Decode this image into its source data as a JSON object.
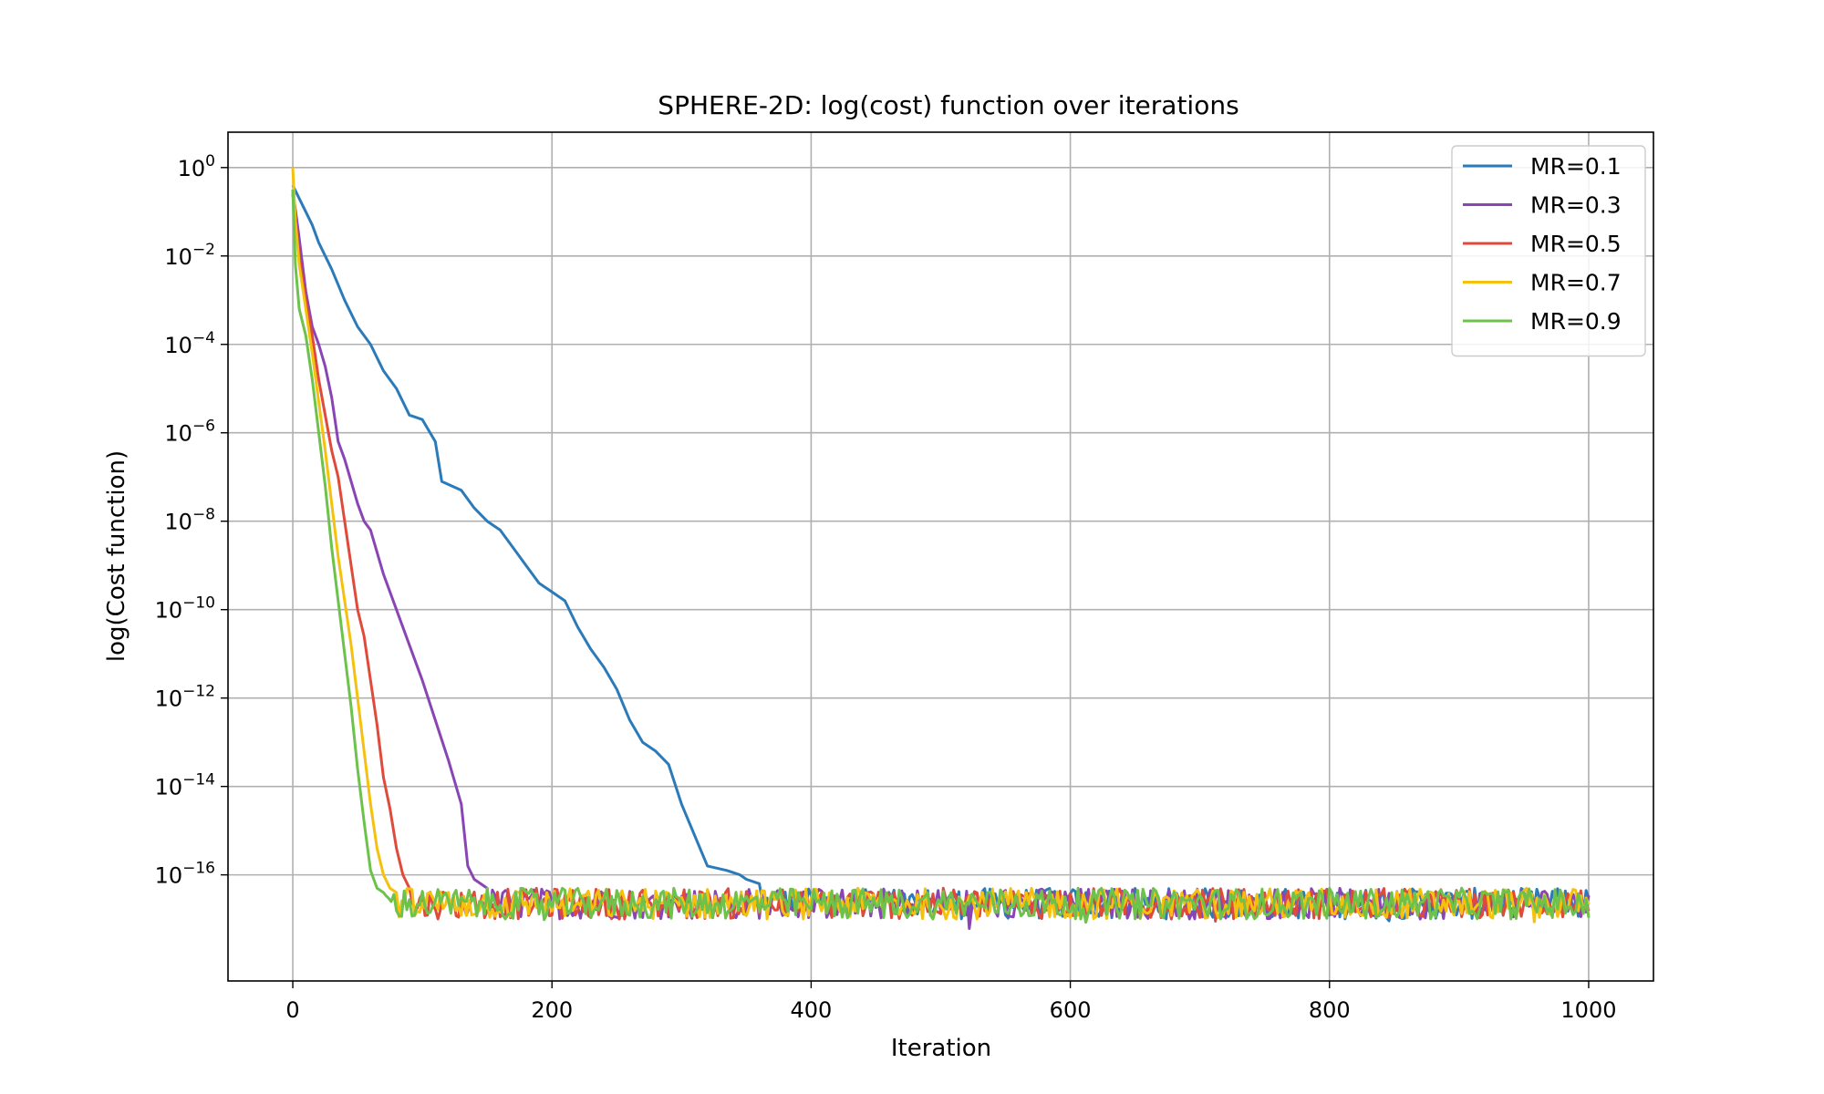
{
  "chart_data": {
    "type": "line",
    "title": "SPHERE-2D: log(cost) function over iterations",
    "xlabel": "Iteration",
    "ylabel": "log(Cost function)",
    "xlim": [
      -50,
      1050
    ],
    "ylim_log10": [
      -18.4,
      0.8
    ],
    "yscale": "log",
    "grid": true,
    "legend_position": "top-right",
    "x_ticks": [
      "0",
      "200",
      "400",
      "600",
      "800",
      "1000"
    ],
    "x_tick_values": [
      0,
      200,
      400,
      600,
      800,
      1000
    ],
    "y_ticks": [
      {
        "base": "10",
        "exp": "0",
        "log10": 0
      },
      {
        "base": "10",
        "exp": "−2",
        "log10": -2
      },
      {
        "base": "10",
        "exp": "−4",
        "log10": -4
      },
      {
        "base": "10",
        "exp": "−6",
        "log10": -6
      },
      {
        "base": "10",
        "exp": "−8",
        "log10": -8
      },
      {
        "base": "10",
        "exp": "−10",
        "log10": -10
      },
      {
        "base": "10",
        "exp": "−12",
        "log10": -12
      },
      {
        "base": "10",
        "exp": "−14",
        "log10": -14
      },
      {
        "base": "10",
        "exp": "−16",
        "log10": -16
      }
    ],
    "noise_floor_log10": {
      "min": -17.0,
      "max": -16.3
    },
    "series": [
      {
        "name": "MR=0.1",
        "color": "#2b7bba",
        "x": [
          0,
          5,
          10,
          15,
          20,
          30,
          40,
          50,
          60,
          70,
          80,
          90,
          100,
          110,
          115,
          130,
          140,
          150,
          160,
          170,
          180,
          190,
          200,
          210,
          220,
          230,
          240,
          250,
          260,
          270,
          280,
          290,
          300,
          310,
          320,
          335,
          345,
          350,
          360
        ],
        "log10_y": [
          -0.4,
          -0.7,
          -1.0,
          -1.3,
          -1.7,
          -2.3,
          -3.0,
          -3.6,
          -4.0,
          -4.6,
          -5.0,
          -5.6,
          -5.7,
          -6.2,
          -7.1,
          -7.3,
          -7.7,
          -8.0,
          -8.2,
          -8.6,
          -9.0,
          -9.4,
          -9.6,
          -9.8,
          -10.4,
          -10.9,
          -11.3,
          -11.8,
          -12.5,
          -13.0,
          -13.2,
          -13.5,
          -14.4,
          -15.1,
          -15.8,
          -15.9,
          -16.0,
          -16.1,
          -16.2
        ]
      },
      {
        "name": "MR=0.3",
        "color": "#8a45b5",
        "x": [
          0,
          5,
          10,
          15,
          20,
          25,
          30,
          35,
          40,
          50,
          55,
          60,
          70,
          80,
          90,
          100,
          110,
          120,
          130,
          135,
          140,
          150
        ],
        "log10_y": [
          -0.5,
          -1.6,
          -2.8,
          -3.6,
          -4.0,
          -4.5,
          -5.2,
          -6.2,
          -6.6,
          -7.6,
          -8.0,
          -8.2,
          -9.2,
          -10.0,
          -10.8,
          -11.6,
          -12.5,
          -13.4,
          -14.4,
          -15.8,
          -16.1,
          -16.3
        ]
      },
      {
        "name": "MR=0.5",
        "color": "#e04a3a",
        "x": [
          0,
          5,
          10,
          15,
          20,
          25,
          30,
          35,
          40,
          45,
          50,
          55,
          60,
          65,
          70,
          75,
          80,
          85,
          90
        ],
        "log10_y": [
          -0.6,
          -2.0,
          -3.0,
          -3.8,
          -4.8,
          -5.6,
          -6.4,
          -7.0,
          -8.0,
          -9.0,
          -10.0,
          -10.6,
          -11.6,
          -12.6,
          -13.8,
          -14.5,
          -15.4,
          -16.0,
          -16.3
        ]
      },
      {
        "name": "MR=0.7",
        "color": "#f5c10f",
        "x": [
          0,
          2,
          5,
          10,
          15,
          20,
          25,
          30,
          35,
          40,
          45,
          50,
          55,
          60,
          65,
          70,
          75,
          80
        ],
        "log10_y": [
          0.0,
          -1.2,
          -2.2,
          -3.2,
          -4.2,
          -5.3,
          -6.4,
          -7.6,
          -8.8,
          -9.8,
          -10.8,
          -12.0,
          -13.2,
          -14.4,
          -15.4,
          -16.0,
          -16.3,
          -16.4
        ]
      },
      {
        "name": "MR=0.9",
        "color": "#6cc24a",
        "x": [
          0,
          2,
          5,
          10,
          15,
          20,
          25,
          30,
          35,
          40,
          45,
          50,
          55,
          60,
          65,
          70
        ],
        "log10_y": [
          -0.5,
          -2.2,
          -3.2,
          -3.8,
          -4.8,
          -6.0,
          -7.2,
          -8.6,
          -9.8,
          -11.0,
          -12.2,
          -13.6,
          -14.8,
          -15.9,
          -16.3,
          -16.4
        ]
      }
    ]
  }
}
